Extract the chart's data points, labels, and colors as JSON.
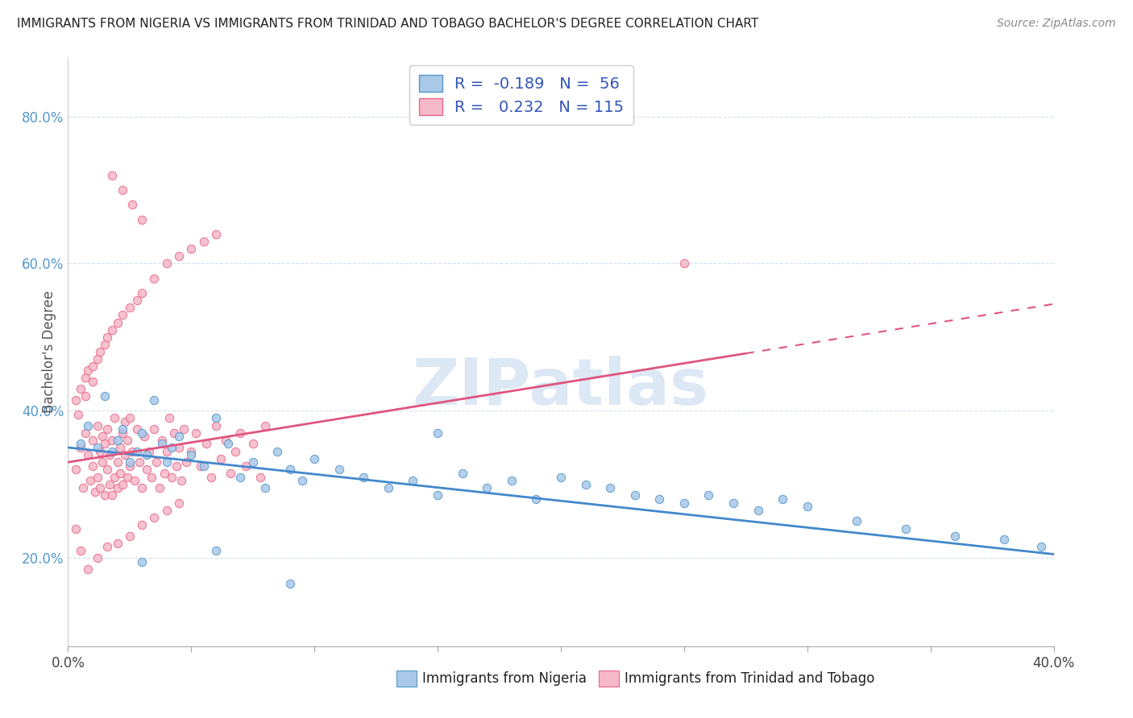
{
  "title": "IMMIGRANTS FROM NIGERIA VS IMMIGRANTS FROM TRINIDAD AND TOBAGO BACHELOR'S DEGREE CORRELATION CHART",
  "source": "Source: ZipAtlas.com",
  "ylabel": "Bachelor's Degree",
  "xlim": [
    0.0,
    0.4
  ],
  "ylim": [
    0.08,
    0.88
  ],
  "color_nigeria_fill": "#aac8e8",
  "color_nigeria_edge": "#5599cc",
  "color_tt_fill": "#f5b8c8",
  "color_tt_edge": "#e8688a",
  "color_nigeria_line": "#4488cc",
  "color_tt_line": "#e05580",
  "color_dash": "#e07090",
  "nigeria_R": -0.189,
  "nigeria_N": 56,
  "tt_R": 0.232,
  "tt_N": 115,
  "watermark": "ZIPatlas",
  "ytick_color": "#5599cc",
  "grid_color": "#ccddee",
  "nigeria_x": [
    0.005,
    0.008,
    0.012,
    0.015,
    0.018,
    0.02,
    0.022,
    0.025,
    0.028,
    0.03,
    0.032,
    0.035,
    0.038,
    0.04,
    0.042,
    0.045,
    0.05,
    0.055,
    0.06,
    0.065,
    0.07,
    0.075,
    0.08,
    0.085,
    0.09,
    0.095,
    0.1,
    0.11,
    0.12,
    0.13,
    0.14,
    0.15,
    0.16,
    0.17,
    0.18,
    0.19,
    0.2,
    0.21,
    0.22,
    0.23,
    0.24,
    0.25,
    0.26,
    0.27,
    0.28,
    0.29,
    0.3,
    0.32,
    0.34,
    0.36,
    0.38,
    0.395,
    0.03,
    0.06,
    0.09,
    0.15
  ],
  "nigeria_y": [
    0.355,
    0.38,
    0.35,
    0.42,
    0.345,
    0.36,
    0.375,
    0.33,
    0.345,
    0.37,
    0.34,
    0.415,
    0.355,
    0.33,
    0.35,
    0.365,
    0.34,
    0.325,
    0.39,
    0.355,
    0.31,
    0.33,
    0.295,
    0.345,
    0.32,
    0.305,
    0.335,
    0.32,
    0.31,
    0.295,
    0.305,
    0.285,
    0.315,
    0.295,
    0.305,
    0.28,
    0.31,
    0.3,
    0.295,
    0.285,
    0.28,
    0.275,
    0.285,
    0.275,
    0.265,
    0.28,
    0.27,
    0.25,
    0.24,
    0.23,
    0.225,
    0.215,
    0.195,
    0.21,
    0.165,
    0.37
  ],
  "tt_x": [
    0.003,
    0.005,
    0.006,
    0.007,
    0.008,
    0.009,
    0.01,
    0.01,
    0.011,
    0.012,
    0.012,
    0.013,
    0.013,
    0.014,
    0.014,
    0.015,
    0.015,
    0.016,
    0.016,
    0.017,
    0.017,
    0.018,
    0.018,
    0.019,
    0.019,
    0.02,
    0.02,
    0.021,
    0.021,
    0.022,
    0.022,
    0.023,
    0.023,
    0.024,
    0.024,
    0.025,
    0.025,
    0.026,
    0.027,
    0.028,
    0.029,
    0.03,
    0.031,
    0.032,
    0.033,
    0.034,
    0.035,
    0.036,
    0.037,
    0.038,
    0.039,
    0.04,
    0.041,
    0.042,
    0.043,
    0.044,
    0.045,
    0.046,
    0.047,
    0.048,
    0.05,
    0.052,
    0.054,
    0.056,
    0.058,
    0.06,
    0.062,
    0.064,
    0.066,
    0.068,
    0.07,
    0.072,
    0.075,
    0.078,
    0.08,
    0.003,
    0.005,
    0.007,
    0.008,
    0.01,
    0.012,
    0.013,
    0.015,
    0.016,
    0.018,
    0.02,
    0.022,
    0.025,
    0.028,
    0.03,
    0.035,
    0.04,
    0.045,
    0.05,
    0.055,
    0.06,
    0.018,
    0.022,
    0.026,
    0.03,
    0.003,
    0.005,
    0.008,
    0.012,
    0.016,
    0.02,
    0.025,
    0.03,
    0.035,
    0.04,
    0.045,
    0.25,
    0.004,
    0.007,
    0.01
  ],
  "tt_y": [
    0.32,
    0.35,
    0.295,
    0.37,
    0.34,
    0.305,
    0.36,
    0.325,
    0.29,
    0.38,
    0.31,
    0.345,
    0.295,
    0.365,
    0.33,
    0.285,
    0.355,
    0.32,
    0.375,
    0.3,
    0.34,
    0.285,
    0.36,
    0.31,
    0.39,
    0.33,
    0.295,
    0.35,
    0.315,
    0.37,
    0.3,
    0.34,
    0.385,
    0.31,
    0.36,
    0.325,
    0.39,
    0.345,
    0.305,
    0.375,
    0.33,
    0.295,
    0.365,
    0.32,
    0.345,
    0.31,
    0.375,
    0.33,
    0.295,
    0.36,
    0.315,
    0.345,
    0.39,
    0.31,
    0.37,
    0.325,
    0.35,
    0.305,
    0.375,
    0.33,
    0.345,
    0.37,
    0.325,
    0.355,
    0.31,
    0.38,
    0.335,
    0.36,
    0.315,
    0.345,
    0.37,
    0.325,
    0.355,
    0.31,
    0.38,
    0.415,
    0.43,
    0.445,
    0.455,
    0.46,
    0.47,
    0.48,
    0.49,
    0.5,
    0.51,
    0.52,
    0.53,
    0.54,
    0.55,
    0.56,
    0.58,
    0.6,
    0.61,
    0.62,
    0.63,
    0.64,
    0.72,
    0.7,
    0.68,
    0.66,
    0.24,
    0.21,
    0.185,
    0.2,
    0.215,
    0.22,
    0.23,
    0.245,
    0.255,
    0.265,
    0.275,
    0.6,
    0.395,
    0.42,
    0.44
  ]
}
